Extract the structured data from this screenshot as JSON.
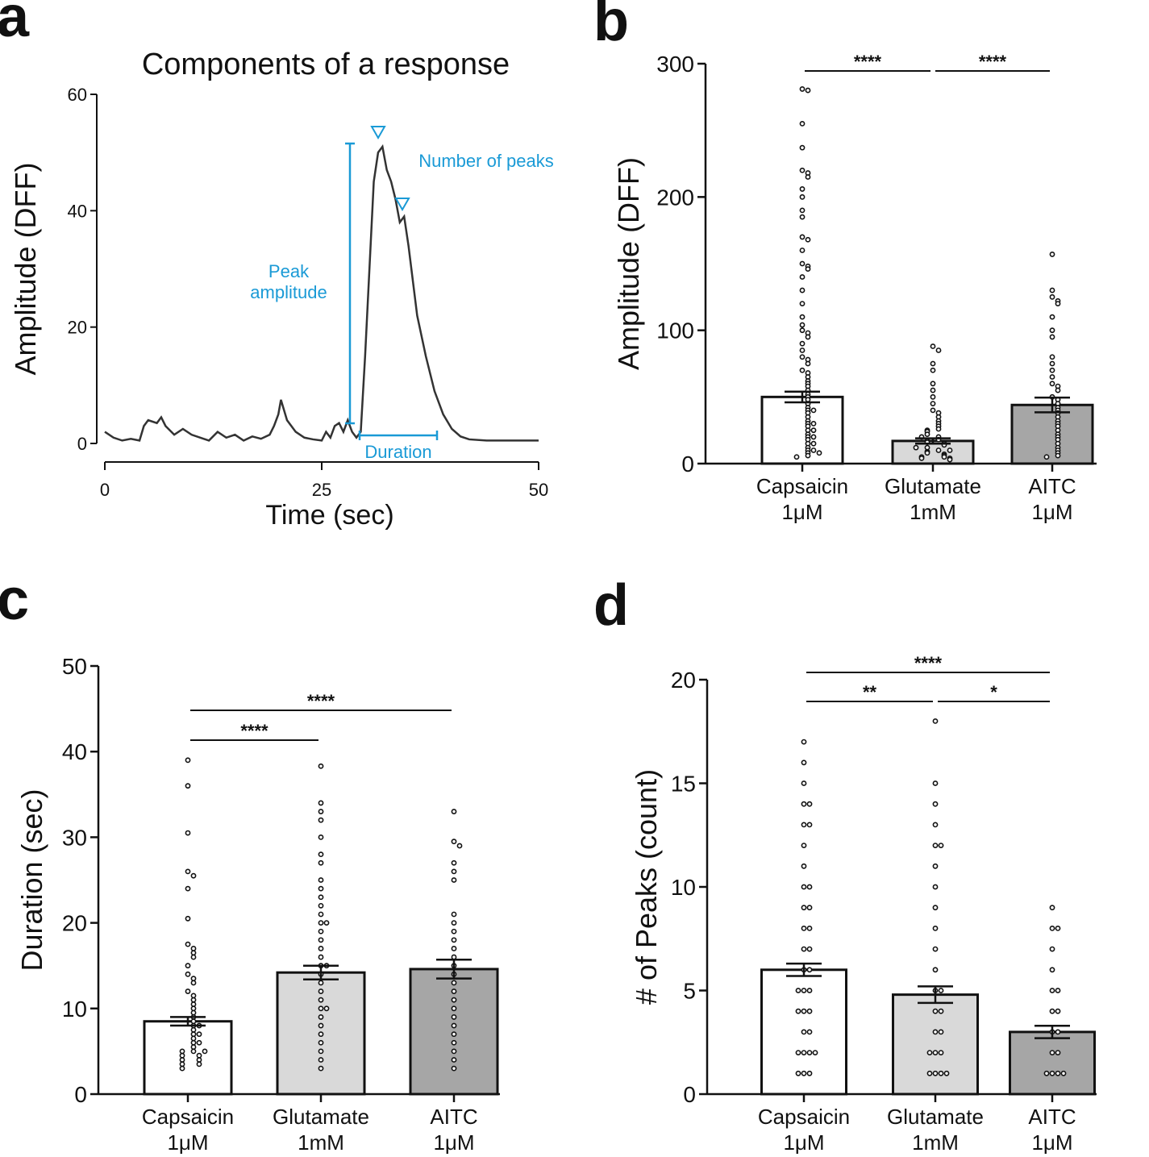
{
  "chart_data": [
    {
      "type": "line",
      "panel": "a",
      "title": "Components of a response",
      "xlabel": "Time (sec)",
      "ylabel": "Amplitude (DFF)",
      "xlim": [
        0,
        50
      ],
      "ylim": [
        0,
        60
      ],
      "xticks": [
        0,
        25,
        50
      ],
      "yticks": [
        0,
        20,
        40,
        60
      ],
      "annotations": [
        "Peak amplitude",
        "Number of peaks",
        "Duration"
      ],
      "annotation_color": "#1a9ad6",
      "x": [
        0,
        1,
        2,
        3,
        4,
        4.5,
        5,
        6,
        6.5,
        7,
        8,
        9,
        10,
        11,
        12,
        13,
        14,
        15,
        16,
        17,
        18,
        19,
        19.5,
        20,
        20.3,
        21,
        22,
        23,
        24,
        25,
        25.5,
        26,
        26.5,
        27,
        27.5,
        28,
        28.5,
        29,
        29.5,
        30,
        30.5,
        31,
        31.5,
        32,
        32.5,
        33,
        33.5,
        34,
        34.5,
        35,
        35.5,
        36,
        37,
        38,
        39,
        40,
        41,
        42,
        44,
        50
      ],
      "series": [
        {
          "name": "Response",
          "color": "#333333",
          "values": [
            2,
            1,
            0.5,
            0.8,
            0.5,
            3,
            4,
            3.5,
            4.5,
            3,
            1.5,
            2.5,
            1.5,
            1,
            0.5,
            2,
            1,
            1.5,
            0.5,
            1.2,
            0.8,
            1.5,
            3,
            5,
            7.5,
            4,
            2,
            1,
            0.7,
            0.5,
            2,
            1,
            3,
            3.5,
            2,
            4,
            2,
            1,
            2,
            15,
            30,
            45,
            50,
            51,
            47,
            45,
            42,
            38,
            39,
            34,
            28,
            22,
            15,
            9,
            5,
            2.5,
            1.2,
            0.7,
            0.5,
            0.5
          ]
        }
      ]
    },
    {
      "type": "bar",
      "panel": "b",
      "ylabel": "Amplitude (DFF)",
      "ylim": [
        0,
        300
      ],
      "yticks": [
        0,
        100,
        200,
        300
      ],
      "categories": [
        "Capsaicin 1μM",
        "Glutamate 1mM",
        "AITC 1μM"
      ],
      "colors": [
        "#ffffff",
        "#d9d9d9",
        "#a6a6a6"
      ],
      "values": [
        50,
        17,
        44
      ],
      "errors": [
        4,
        2,
        5.5
      ],
      "points": [
        [
          281,
          280,
          255,
          237,
          220,
          218,
          215,
          206,
          200,
          190,
          185,
          170,
          168,
          160,
          150,
          148,
          146,
          140,
          130,
          120,
          110,
          104,
          100,
          98,
          95,
          90,
          85,
          80,
          78,
          75,
          70,
          68,
          65,
          62,
          60,
          58,
          55,
          52,
          50,
          48,
          45,
          42,
          40,
          38,
          35,
          32,
          30,
          28,
          25,
          22,
          20,
          18,
          15,
          12,
          10,
          8,
          6,
          5,
          20,
          15,
          10,
          8,
          30,
          40,
          25
        ],
        [
          88,
          85,
          75,
          70,
          60,
          55,
          50,
          45,
          40,
          38,
          35,
          32,
          30,
          28,
          26,
          25,
          24,
          22,
          20,
          18,
          17,
          16,
          15,
          14,
          12,
          10,
          9,
          8,
          7,
          6,
          5,
          5,
          4,
          4,
          3,
          10,
          12,
          20
        ],
        [
          157,
          130,
          125,
          122,
          120,
          110,
          100,
          95,
          80,
          75,
          70,
          65,
          60,
          58,
          55,
          50,
          48,
          45,
          42,
          40,
          38,
          35,
          32,
          30,
          28,
          25,
          22,
          20,
          18,
          15,
          12,
          10,
          8,
          6,
          5
        ]
      ],
      "comparisons": [
        {
          "pair": [
            0,
            1
          ],
          "label": "****"
        },
        {
          "pair": [
            1,
            2
          ],
          "label": "****"
        }
      ]
    },
    {
      "type": "bar",
      "panel": "c",
      "ylabel": "Duration (sec)",
      "ylim": [
        0,
        50
      ],
      "yticks": [
        0,
        10,
        20,
        30,
        40,
        50
      ],
      "categories": [
        "Capsaicin 1μM",
        "Glutamate 1mM",
        "AITC 1μM"
      ],
      "colors": [
        "#ffffff",
        "#d9d9d9",
        "#a6a6a6"
      ],
      "values": [
        8.5,
        14.2,
        14.6
      ],
      "errors": [
        0.5,
        0.8,
        1.1
      ],
      "points": [
        [
          39,
          36,
          30.5,
          26,
          25.5,
          24,
          20.5,
          17.5,
          17,
          16.5,
          16,
          15,
          14,
          13.5,
          13,
          12,
          11.5,
          11,
          10.5,
          10,
          9.5,
          9,
          8.5,
          8,
          7.5,
          7,
          6.5,
          6,
          5.5,
          5,
          5,
          4.5,
          4.5,
          4,
          4,
          3.5,
          3.5,
          3,
          5,
          6,
          7,
          8
        ],
        [
          38.3,
          34,
          33,
          32,
          30,
          28,
          27,
          25,
          24,
          23,
          22,
          21,
          20,
          19,
          18,
          17,
          16,
          15,
          14,
          13,
          12,
          11,
          10,
          9,
          8,
          7,
          6,
          5,
          4,
          3,
          10,
          15,
          20
        ],
        [
          33,
          29.5,
          29,
          27,
          26,
          25,
          21,
          20,
          19,
          18,
          17,
          16,
          15,
          14,
          13,
          12,
          11,
          10,
          9,
          8,
          7,
          6,
          5,
          4,
          3
        ]
      ],
      "comparisons": [
        {
          "pair": [
            0,
            1
          ],
          "label": "****"
        },
        {
          "pair": [
            0,
            2
          ],
          "label": "****"
        }
      ]
    },
    {
      "type": "bar",
      "panel": "d",
      "ylabel": "# of Peaks (count)",
      "ylim": [
        0,
        20
      ],
      "yticks": [
        0,
        5,
        10,
        15,
        20
      ],
      "categories": [
        "Capsaicin 1μM",
        "Glutamate 1mM",
        "AITC 1μM"
      ],
      "colors": [
        "#ffffff",
        "#d9d9d9",
        "#a6a6a6"
      ],
      "values": [
        6.0,
        4.8,
        3.0
      ],
      "errors": [
        0.3,
        0.4,
        0.3
      ],
      "points": [
        [
          17,
          16,
          15,
          14,
          14,
          13,
          13,
          12,
          11,
          10,
          10,
          9,
          9,
          8,
          8,
          7,
          7,
          6,
          6,
          5,
          5,
          5,
          4,
          4,
          4,
          3,
          3,
          2,
          2,
          2,
          2,
          1,
          1,
          1
        ],
        [
          18,
          15,
          14,
          13,
          12,
          12,
          11,
          10,
          9,
          8,
          7,
          6,
          5,
          5,
          4,
          4,
          3,
          3,
          2,
          2,
          2,
          1,
          1,
          1,
          1
        ],
        [
          9,
          8,
          8,
          7,
          6,
          5,
          5,
          4,
          4,
          3,
          3,
          2,
          2,
          1,
          1,
          1,
          1
        ]
      ],
      "comparisons": [
        {
          "pair": [
            0,
            1
          ],
          "label": "**"
        },
        {
          "pair": [
            1,
            2
          ],
          "label": "*"
        },
        {
          "pair": [
            0,
            2
          ],
          "label": "****"
        }
      ]
    }
  ]
}
